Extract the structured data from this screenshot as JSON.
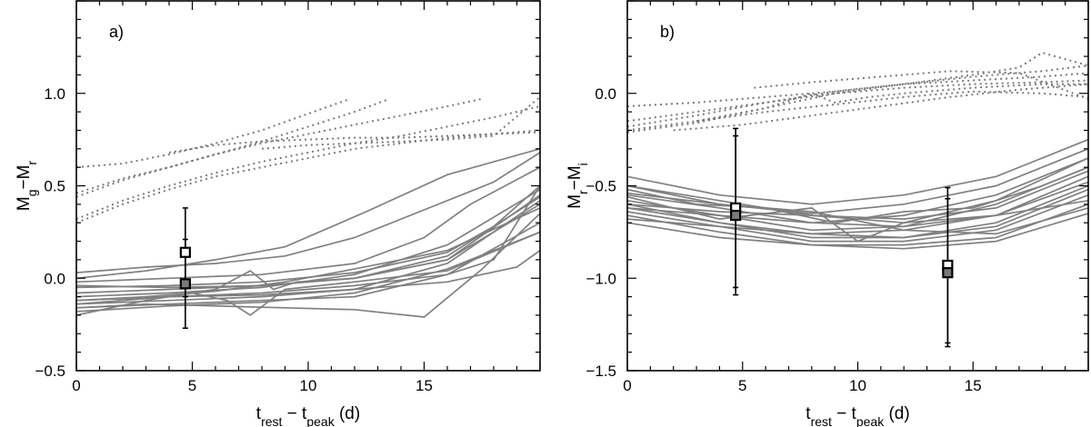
{
  "chart_data": [
    {
      "type": "line",
      "panel_label": "a)",
      "ylabel": {
        "main": "M",
        "sub1": "g",
        "sep": "−M",
        "sub2": "r"
      },
      "xlabel": {
        "t1": "t",
        "s1": "rest",
        "mid": " − t",
        "s2": "peak",
        "end": " (d)"
      },
      "xlim": [
        0,
        20
      ],
      "ylim": [
        -0.5,
        1.5
      ],
      "xticks": [
        0,
        5,
        10,
        15
      ],
      "xtick_labels": [
        "0",
        "5",
        "10",
        "15"
      ],
      "yticks": [
        -0.5,
        0.0,
        0.5,
        1.0
      ],
      "ytick_labels": [
        "−0.5",
        "0.0",
        "0.5",
        "1.0"
      ],
      "dotted_series": [
        {
          "x": [
            0,
            2,
            4,
            6,
            8,
            10,
            11.8
          ],
          "y": [
            0.6,
            0.62,
            0.67,
            0.73,
            0.8,
            0.89,
            0.97
          ]
        },
        {
          "x": [
            0,
            2,
            4,
            6,
            8,
            10,
            12,
            13.5
          ],
          "y": [
            0.46,
            0.54,
            0.6,
            0.67,
            0.74,
            0.82,
            0.9,
            0.97
          ]
        },
        {
          "x": [
            0,
            2,
            4,
            6,
            8,
            10,
            12,
            14,
            16,
            17.5
          ],
          "y": [
            0.44,
            0.53,
            0.6,
            0.67,
            0.73,
            0.78,
            0.83,
            0.88,
            0.93,
            0.97
          ]
        },
        {
          "x": [
            0,
            2,
            4,
            6,
            8,
            10,
            12,
            14,
            16,
            18,
            20
          ],
          "y": [
            0.32,
            0.42,
            0.5,
            0.57,
            0.63,
            0.68,
            0.73,
            0.77,
            0.82,
            0.87,
            0.93
          ]
        },
        {
          "x": [
            0,
            2,
            4,
            6,
            8,
            10,
            12,
            14,
            16,
            18,
            20
          ],
          "y": [
            0.3,
            0.4,
            0.48,
            0.55,
            0.6,
            0.65,
            0.7,
            0.73,
            0.76,
            0.78,
            0.8
          ]
        },
        {
          "x": [
            4,
            6,
            8,
            10,
            12,
            14,
            16,
            18,
            20
          ],
          "y": [
            0.68,
            0.72,
            0.74,
            0.75,
            0.76,
            0.76,
            0.77,
            0.78,
            0.79
          ]
        },
        {
          "x": [
            8,
            10,
            12,
            14,
            16,
            18,
            20
          ],
          "y": [
            0.7,
            0.72,
            0.73,
            0.74,
            0.75,
            0.77,
            0.98
          ]
        }
      ],
      "solid_series": [
        {
          "x": [
            0,
            3,
            6,
            9,
            12,
            15,
            18,
            20
          ],
          "y": [
            0.03,
            0.06,
            0.08,
            0.12,
            0.22,
            0.37,
            0.52,
            0.68
          ]
        },
        {
          "x": [
            0,
            3,
            6,
            9,
            12.5,
            16,
            20
          ],
          "y": [
            0.0,
            0.04,
            0.1,
            0.17,
            0.36,
            0.56,
            0.7
          ]
        },
        {
          "x": [
            0,
            4,
            8,
            12,
            15,
            17,
            20
          ],
          "y": [
            -0.02,
            0.0,
            0.02,
            0.08,
            0.22,
            0.4,
            0.6
          ]
        },
        {
          "x": [
            0,
            4,
            8,
            12,
            16,
            18,
            20
          ],
          "y": [
            -0.05,
            -0.04,
            -0.02,
            0.03,
            0.14,
            0.28,
            0.5
          ]
        },
        {
          "x": [
            0,
            4,
            8,
            12,
            16,
            20
          ],
          "y": [
            -0.08,
            -0.06,
            -0.04,
            0.0,
            0.1,
            0.45
          ]
        },
        {
          "x": [
            0,
            4,
            8,
            12,
            16,
            20
          ],
          "y": [
            -0.1,
            -0.08,
            -0.05,
            0.02,
            0.18,
            0.48
          ]
        },
        {
          "x": [
            0,
            3,
            6,
            9,
            12,
            16,
            20
          ],
          "y": [
            -0.12,
            -0.1,
            -0.07,
            -0.02,
            0.05,
            0.15,
            0.38
          ]
        },
        {
          "x": [
            0,
            4,
            8,
            12,
            16,
            20
          ],
          "y": [
            -0.14,
            -0.12,
            -0.1,
            -0.06,
            0.08,
            0.42
          ]
        },
        {
          "x": [
            0,
            4,
            8,
            12,
            16,
            20
          ],
          "y": [
            -0.16,
            -0.14,
            -0.12,
            -0.1,
            0.02,
            0.3
          ]
        },
        {
          "x": [
            0,
            4,
            8,
            12,
            16,
            20
          ],
          "y": [
            -0.18,
            -0.15,
            -0.13,
            -0.08,
            0.05,
            0.25
          ]
        },
        {
          "x": [
            0,
            3,
            6,
            9,
            12,
            15,
            17.5,
            20
          ],
          "y": [
            -0.16,
            -0.14,
            -0.15,
            -0.16,
            -0.17,
            -0.21,
            0.05,
            0.35
          ]
        },
        {
          "x": [
            0,
            4,
            8,
            12,
            16,
            18,
            20
          ],
          "y": [
            -0.14,
            -0.1,
            -0.08,
            -0.04,
            0.02,
            0.1,
            0.5
          ]
        },
        {
          "x": [
            0,
            3,
            5,
            6.5,
            7.5,
            9,
            12,
            16,
            20
          ],
          "y": [
            -0.2,
            -0.12,
            -0.08,
            -0.12,
            -0.2,
            -0.06,
            -0.02,
            0.04,
            0.25
          ]
        },
        {
          "x": [
            0,
            4,
            6,
            7.5,
            8.5,
            9.5,
            12,
            16,
            20
          ],
          "y": [
            -0.12,
            -0.1,
            -0.06,
            0.04,
            -0.06,
            -0.02,
            0.0,
            0.12,
            0.44
          ]
        },
        {
          "x": [
            0,
            4,
            8,
            12,
            16,
            19,
            20
          ],
          "y": [
            -0.12,
            -0.1,
            -0.09,
            -0.06,
            -0.02,
            0.06,
            0.15
          ]
        },
        {
          "x": [
            0,
            4,
            8,
            12,
            16,
            20
          ],
          "y": [
            -0.04,
            -0.05,
            -0.04,
            0.0,
            0.1,
            0.4
          ]
        }
      ],
      "points": [
        {
          "x": 4.7,
          "y": 0.14,
          "yerr": 0.24,
          "style": "open"
        },
        {
          "x": 4.7,
          "y": -0.03,
          "yerr": 0.24,
          "style": "filled"
        }
      ]
    },
    {
      "type": "line",
      "panel_label": "b)",
      "ylabel": {
        "main": "M",
        "sub1": "r",
        "sep": "−M",
        "sub2": "i"
      },
      "xlabel": {
        "t1": "t",
        "s1": "rest",
        "mid": " − t",
        "s2": "peak",
        "end": " (d)"
      },
      "xlim": [
        0,
        20
      ],
      "ylim": [
        -1.5,
        0.5
      ],
      "xticks": [
        0,
        5,
        10,
        15
      ],
      "xtick_labels": [
        "0",
        "5",
        "10",
        "15"
      ],
      "yticks": [
        -1.5,
        -1.0,
        -0.5,
        0.0
      ],
      "ytick_labels": [
        "−1.5",
        "−1.0",
        "−0.5",
        "0.0"
      ],
      "dotted_series": [
        {
          "x": [
            0,
            3,
            6,
            9,
            12,
            15,
            18,
            20
          ],
          "y": [
            -0.07,
            -0.05,
            -0.02,
            0.01,
            0.05,
            0.09,
            0.12,
            0.15
          ]
        },
        {
          "x": [
            0,
            3,
            6,
            9,
            12,
            15,
            17,
            18,
            20
          ],
          "y": [
            -0.2,
            -0.15,
            -0.08,
            0.0,
            0.05,
            0.1,
            0.14,
            0.22,
            0.15
          ]
        },
        {
          "x": [
            0,
            3,
            6,
            9,
            12,
            15,
            18,
            20
          ],
          "y": [
            -0.18,
            -0.12,
            -0.05,
            0.01,
            0.05,
            0.07,
            0.09,
            0.11
          ]
        },
        {
          "x": [
            0,
            3,
            6,
            9,
            12,
            15,
            18,
            20
          ],
          "y": [
            -0.15,
            -0.1,
            -0.05,
            0.0,
            0.03,
            0.05,
            0.06,
            0.07
          ]
        },
        {
          "x": [
            0,
            3,
            6,
            8,
            9,
            10.5,
            12,
            15,
            18,
            20
          ],
          "y": [
            -0.21,
            -0.16,
            -0.08,
            0.0,
            -0.05,
            -0.02,
            0.0,
            0.03,
            0.05,
            0.05
          ]
        },
        {
          "x": [
            2,
            5,
            8,
            11,
            14,
            17,
            20
          ],
          "y": [
            -0.2,
            -0.17,
            -0.12,
            -0.07,
            -0.02,
            0.02,
            0.05
          ]
        },
        {
          "x": [
            5.5,
            8,
            11,
            14,
            17,
            20
          ],
          "y": [
            0.03,
            0.06,
            0.09,
            0.12,
            0.11,
            -0.03
          ]
        },
        {
          "x": [
            3,
            6,
            9,
            12,
            15,
            18,
            20
          ],
          "y": [
            -0.15,
            -0.1,
            -0.06,
            -0.02,
            0.01,
            0.0,
            -0.02
          ]
        }
      ],
      "solid_series": [
        {
          "x": [
            0,
            4,
            8,
            12,
            16,
            20
          ],
          "y": [
            -0.45,
            -0.55,
            -0.6,
            -0.55,
            -0.45,
            -0.25
          ]
        },
        {
          "x": [
            0,
            4,
            8,
            12,
            16,
            20
          ],
          "y": [
            -0.5,
            -0.6,
            -0.65,
            -0.6,
            -0.5,
            -0.3
          ]
        },
        {
          "x": [
            0,
            4,
            8,
            12,
            16,
            20
          ],
          "y": [
            -0.55,
            -0.62,
            -0.7,
            -0.66,
            -0.55,
            -0.35
          ]
        },
        {
          "x": [
            0,
            4,
            8,
            12,
            16,
            20
          ],
          "y": [
            -0.58,
            -0.66,
            -0.74,
            -0.72,
            -0.6,
            -0.4
          ]
        },
        {
          "x": [
            0,
            4,
            8,
            12,
            16,
            20
          ],
          "y": [
            -0.6,
            -0.7,
            -0.76,
            -0.74,
            -0.66,
            -0.45
          ]
        },
        {
          "x": [
            0,
            4,
            8,
            12,
            16,
            20
          ],
          "y": [
            -0.62,
            -0.7,
            -0.78,
            -0.78,
            -0.7,
            -0.5
          ]
        },
        {
          "x": [
            0,
            4,
            8,
            12,
            16,
            20
          ],
          "y": [
            -0.64,
            -0.72,
            -0.8,
            -0.8,
            -0.74,
            -0.55
          ]
        },
        {
          "x": [
            0,
            4,
            8,
            12,
            16,
            20
          ],
          "y": [
            -0.66,
            -0.75,
            -0.82,
            -0.82,
            -0.78,
            -0.6
          ]
        },
        {
          "x": [
            0,
            4,
            8,
            12,
            16,
            20
          ],
          "y": [
            -0.7,
            -0.78,
            -0.82,
            -0.84,
            -0.8,
            -0.65
          ]
        },
        {
          "x": [
            0,
            3,
            6,
            9,
            12,
            15,
            18,
            20
          ],
          "y": [
            -0.52,
            -0.6,
            -0.62,
            -0.7,
            -0.64,
            -0.62,
            -0.5,
            -0.4
          ]
        },
        {
          "x": [
            0,
            4,
            8,
            10,
            12,
            16,
            20
          ],
          "y": [
            -0.56,
            -0.68,
            -0.62,
            -0.8,
            -0.7,
            -0.58,
            -0.35
          ]
        },
        {
          "x": [
            0,
            4,
            8,
            12,
            16,
            20
          ],
          "y": [
            -0.6,
            -0.64,
            -0.66,
            -0.68,
            -0.62,
            -0.42
          ]
        },
        {
          "x": [
            0,
            4,
            8,
            12,
            16,
            20
          ],
          "y": [
            -0.62,
            -0.66,
            -0.7,
            -0.72,
            -0.66,
            -0.48
          ]
        },
        {
          "x": [
            0,
            4,
            8,
            12,
            16,
            20
          ],
          "y": [
            -0.68,
            -0.72,
            -0.76,
            -0.78,
            -0.72,
            -0.52
          ]
        },
        {
          "x": [
            0,
            4,
            8,
            12,
            16,
            20
          ],
          "y": [
            -0.5,
            -0.58,
            -0.66,
            -0.7,
            -0.66,
            -0.58
          ]
        },
        {
          "x": [
            0,
            4,
            8,
            12,
            16,
            20
          ],
          "y": [
            -0.54,
            -0.6,
            -0.64,
            -0.74,
            -0.76,
            -0.62
          ]
        }
      ],
      "points": [
        {
          "x": 4.7,
          "y": -0.62,
          "yerr": 0.43,
          "style": "open"
        },
        {
          "x": 4.7,
          "y": -0.66,
          "yerr": 0.43,
          "style": "filled"
        },
        {
          "x": 13.9,
          "y": -0.93,
          "yerr": 0.42,
          "style": "open"
        },
        {
          "x": 13.9,
          "y": -0.97,
          "yerr": 0.4,
          "style": "filled"
        }
      ]
    }
  ]
}
